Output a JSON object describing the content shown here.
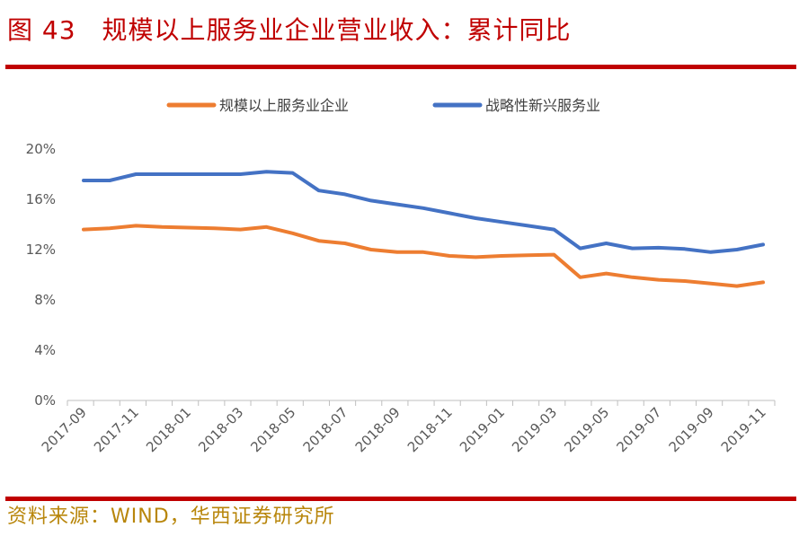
{
  "figure": {
    "title": "图 43　规模以上服务业企业营业收入：累计同比",
    "source": "资料来源：WIND，华西证券研究所"
  },
  "colors": {
    "accent_red": "#c00000",
    "title_red": "#c00000",
    "source_gold": "#b8860b",
    "series_orange": "#ed7d31",
    "series_blue": "#4472c4",
    "axis_gray": "#bfbfbf",
    "text_gray": "#595959"
  },
  "chart_data": {
    "type": "line",
    "title": "",
    "xlabel": "",
    "ylabel": "",
    "x": [
      "2017-09",
      "2017-10",
      "2017-11",
      "2017-12",
      "2018-01",
      "2018-02",
      "2018-03",
      "2018-04",
      "2018-05",
      "2018-06",
      "2018-07",
      "2018-08",
      "2018-09",
      "2018-10",
      "2018-11",
      "2018-12",
      "2019-01",
      "2019-02",
      "2019-03",
      "2019-04",
      "2019-05",
      "2019-06",
      "2019-07",
      "2019-08",
      "2019-09",
      "2019-10",
      "2019-11"
    ],
    "x_tick_labels": [
      "2017-09",
      "2017-11",
      "2018-01",
      "2018-03",
      "2018-05",
      "2018-07",
      "2018-09",
      "2018-11",
      "2019-01",
      "2019-03",
      "2019-05",
      "2019-07",
      "2019-09",
      "2019-11"
    ],
    "y_ticks": [
      "0%",
      "4%",
      "8%",
      "12%",
      "16%",
      "20%"
    ],
    "ylim": [
      0,
      20
    ],
    "y_unit": "%",
    "grid": false,
    "legend_position": "top",
    "series": [
      {
        "name": "规模以上服务业企业",
        "color": "#ed7d31",
        "values": [
          13.6,
          13.7,
          13.9,
          13.8,
          13.75,
          13.7,
          13.6,
          13.8,
          13.3,
          12.7,
          12.5,
          12.0,
          11.8,
          11.8,
          11.5,
          11.4,
          11.5,
          11.55,
          11.6,
          9.8,
          10.1,
          9.8,
          9.6,
          9.5,
          9.3,
          9.1,
          9.4
        ]
      },
      {
        "name": "战略性新兴服务业",
        "color": "#4472c4",
        "values": [
          17.5,
          17.5,
          18.0,
          18.0,
          18.0,
          18.0,
          18.0,
          18.2,
          18.1,
          16.7,
          16.4,
          15.9,
          15.6,
          15.3,
          14.9,
          14.5,
          14.2,
          13.9,
          13.6,
          12.1,
          12.5,
          12.1,
          12.15,
          12.05,
          11.8,
          12.0,
          12.4
        ]
      }
    ]
  }
}
